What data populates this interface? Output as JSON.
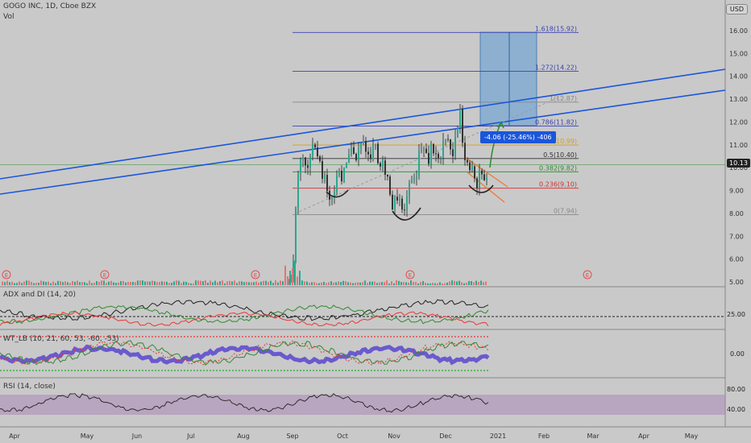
{
  "header": {
    "symbol_line": "GOGO INC, 1D, Cboe BZX",
    "vol_label": "Vol",
    "currency_button": "USD"
  },
  "price_axis": [
    "16.00",
    "15.00",
    "14.00",
    "13.00",
    "12.00",
    "11.00",
    "10.00",
    "9.00",
    "8.00",
    "7.00",
    "6.00",
    "5.00"
  ],
  "last_price": "10.13",
  "fib_levels": [
    {
      "label": "1.618(15.92)",
      "color": "#3b44b0"
    },
    {
      "label": "1.272(14.22)",
      "color": "#3b44b0"
    },
    {
      "label": "1(12.87)",
      "color": "#888888"
    },
    {
      "label": "0.786(11.82)",
      "color": "#3b44b0"
    },
    {
      "label": "0.618(10.99)",
      "color": "#d4a017"
    },
    {
      "label": "0.5(10.40)",
      "color": "#333333"
    },
    {
      "label": "0.382(9.82)",
      "color": "#2e8b2e"
    },
    {
      "label": "0.236(9.10)",
      "color": "#d03030"
    },
    {
      "label": "0(7.94)",
      "color": "#888888"
    }
  ],
  "measure_label": "-4.06 (-25.46%) -406",
  "earnings_marker": "E",
  "panels": {
    "adx": {
      "title": "ADX and DI (14, 20)",
      "axis": [
        "25.00"
      ]
    },
    "wt": {
      "title": "WT_LB (10, 21, 60, 53, -60, -53)",
      "axis": [
        "0.00"
      ]
    },
    "rsi": {
      "title": "RSI (14, close)",
      "axis": [
        "80.00",
        "40.00"
      ]
    }
  },
  "time_axis": [
    "Apr",
    "May",
    "Jun",
    "Jul",
    "Aug",
    "Sep",
    "Oct",
    "Nov",
    "Dec",
    "2021",
    "Feb",
    "Mar",
    "Apr",
    "May"
  ],
  "colors": {
    "accent": "#1a56db",
    "up": "#26a69a",
    "down": "#ef5350",
    "fib_box": "#5b9bd5"
  }
}
